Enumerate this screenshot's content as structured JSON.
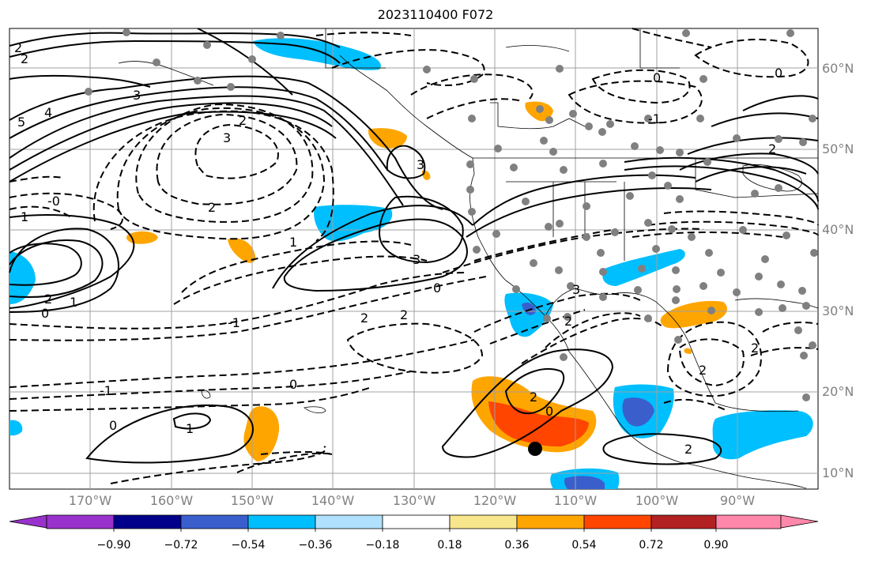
{
  "title": "2023110400 F072",
  "latitude_labels": [
    "60°N",
    "50°N",
    "40°N",
    "30°N",
    "20°N",
    "10°N"
  ],
  "longitude_labels": [
    "170°W",
    "160°W",
    "150°W",
    "140°W",
    "130°W",
    "120°W",
    "110°W",
    "100°W",
    "90°W"
  ],
  "colorbar": {
    "tick_labels": [
      "−0.90",
      "−0.72",
      "−0.54",
      "−0.36",
      "−0.18",
      "0.18",
      "0.36",
      "0.54",
      "0.72",
      "0.90"
    ],
    "colors": [
      "#9932cc",
      "#00008b",
      "#3a5fcd",
      "#00bfff",
      "#b0e2ff",
      "#ffffff",
      "#f8e68c",
      "#ffa500",
      "#ff4500",
      "#b22222",
      "#ff88aa"
    ]
  },
  "contour_labels": [
    "2",
    "2",
    "3",
    "4",
    "5",
    "2",
    "3",
    "2",
    "-0",
    "1",
    "1",
    "-1",
    "2",
    "2",
    "0",
    "0",
    "-1",
    "1",
    "0",
    "1",
    "0",
    "2",
    "3",
    "3",
    "0",
    "-1",
    "3",
    "2",
    "2",
    "0",
    "2",
    "0",
    "2",
    "2",
    "2"
  ],
  "colors": {
    "positive_contour": "#000000",
    "negative_contour": "#000000",
    "graticule": "#a0a0a0",
    "station": "#808080",
    "marker": "#000000"
  }
}
